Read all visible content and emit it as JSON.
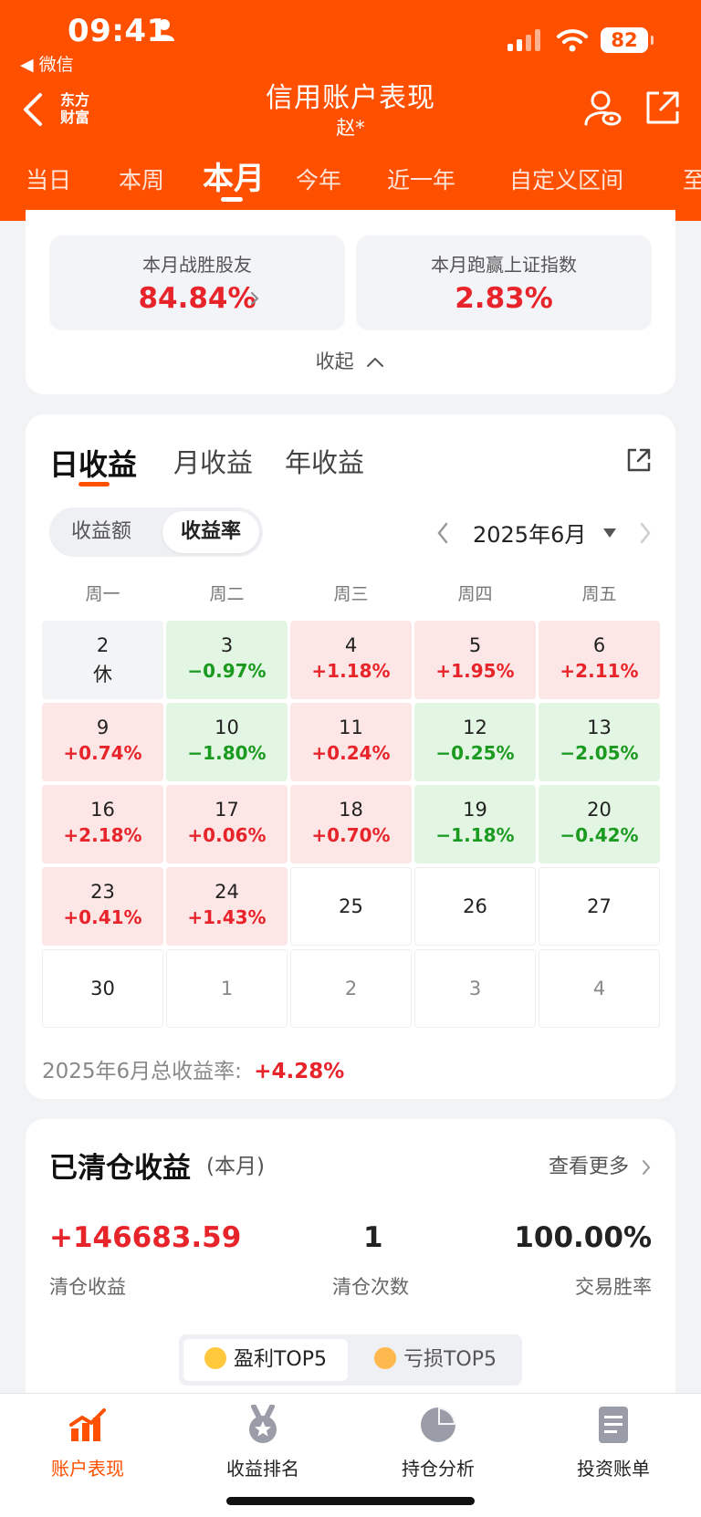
{
  "status_bar": {
    "time": "09:41",
    "back_app": "微信",
    "battery": "82"
  },
  "header": {
    "logo_line1": "东方",
    "logo_line2": "财富",
    "title": "信用账户表现",
    "subtitle": "赵*",
    "period_tabs": [
      "当日",
      "本周",
      "本月",
      "今年",
      "近一年",
      "自定义区间",
      "至"
    ],
    "active_tab": "本月"
  },
  "summary": {
    "beat_friends_label": "本月战胜股友",
    "beat_friends_value": "84.84%",
    "beat_index_label": "本月跑赢上证指数",
    "beat_index_value": "2.83%",
    "collapse_label": "收起"
  },
  "returns": {
    "tabs": [
      "日收益",
      "月收益",
      "年收益"
    ],
    "active_tab": "日收益",
    "toggle": [
      "收益额",
      "收益率"
    ],
    "active_toggle": "收益率",
    "month": "2025年6月",
    "weekdays": [
      "周一",
      "周二",
      "周三",
      "周四",
      "周五"
    ],
    "days": [
      {
        "d": "2",
        "p": "休",
        "kind": "rest"
      },
      {
        "d": "3",
        "p": "−0.97%",
        "kind": "neg"
      },
      {
        "d": "4",
        "p": "+1.18%",
        "kind": "pos"
      },
      {
        "d": "5",
        "p": "+1.95%",
        "kind": "pos"
      },
      {
        "d": "6",
        "p": "+2.11%",
        "kind": "pos"
      },
      {
        "d": "9",
        "p": "+0.74%",
        "kind": "pos"
      },
      {
        "d": "10",
        "p": "−1.80%",
        "kind": "neg"
      },
      {
        "d": "11",
        "p": "+0.24%",
        "kind": "pos"
      },
      {
        "d": "12",
        "p": "−0.25%",
        "kind": "neg"
      },
      {
        "d": "13",
        "p": "−2.05%",
        "kind": "neg"
      },
      {
        "d": "16",
        "p": "+2.18%",
        "kind": "pos"
      },
      {
        "d": "17",
        "p": "+0.06%",
        "kind": "pos"
      },
      {
        "d": "18",
        "p": "+0.70%",
        "kind": "pos"
      },
      {
        "d": "19",
        "p": "−1.18%",
        "kind": "neg"
      },
      {
        "d": "20",
        "p": "−0.42%",
        "kind": "neg"
      },
      {
        "d": "23",
        "p": "+0.41%",
        "kind": "pos"
      },
      {
        "d": "24",
        "p": "+1.43%",
        "kind": "pos"
      },
      {
        "d": "25",
        "p": "",
        "kind": "empty"
      },
      {
        "d": "26",
        "p": "",
        "kind": "empty"
      },
      {
        "d": "27",
        "p": "",
        "kind": "empty"
      },
      {
        "d": "30",
        "p": "",
        "kind": "empty"
      },
      {
        "d": "1",
        "p": "",
        "kind": "other"
      },
      {
        "d": "2",
        "p": "",
        "kind": "other"
      },
      {
        "d": "3",
        "p": "",
        "kind": "other"
      },
      {
        "d": "4",
        "p": "",
        "kind": "other"
      }
    ],
    "total_label": "2025年6月总收益率:",
    "total_value": "+4.28%"
  },
  "cleared": {
    "title": "已清仓收益",
    "subtitle": "(本月)",
    "more": "查看更多",
    "profit_value": "+146683.59",
    "profit_label": "清仓收益",
    "count_value": "1",
    "count_label": "清仓次数",
    "win_rate_value": "100.00%",
    "win_rate_label": "交易胜率",
    "top_profit": "盈利TOP5",
    "top_loss": "亏损TOP5"
  },
  "bottom_nav": {
    "items": [
      "账户表现",
      "收益排名",
      "持仓分析",
      "投资账单"
    ],
    "active": "账户表现"
  },
  "colors": {
    "brand": "#ff5000",
    "up": "#e8242b",
    "down": "#1a9a1f"
  }
}
